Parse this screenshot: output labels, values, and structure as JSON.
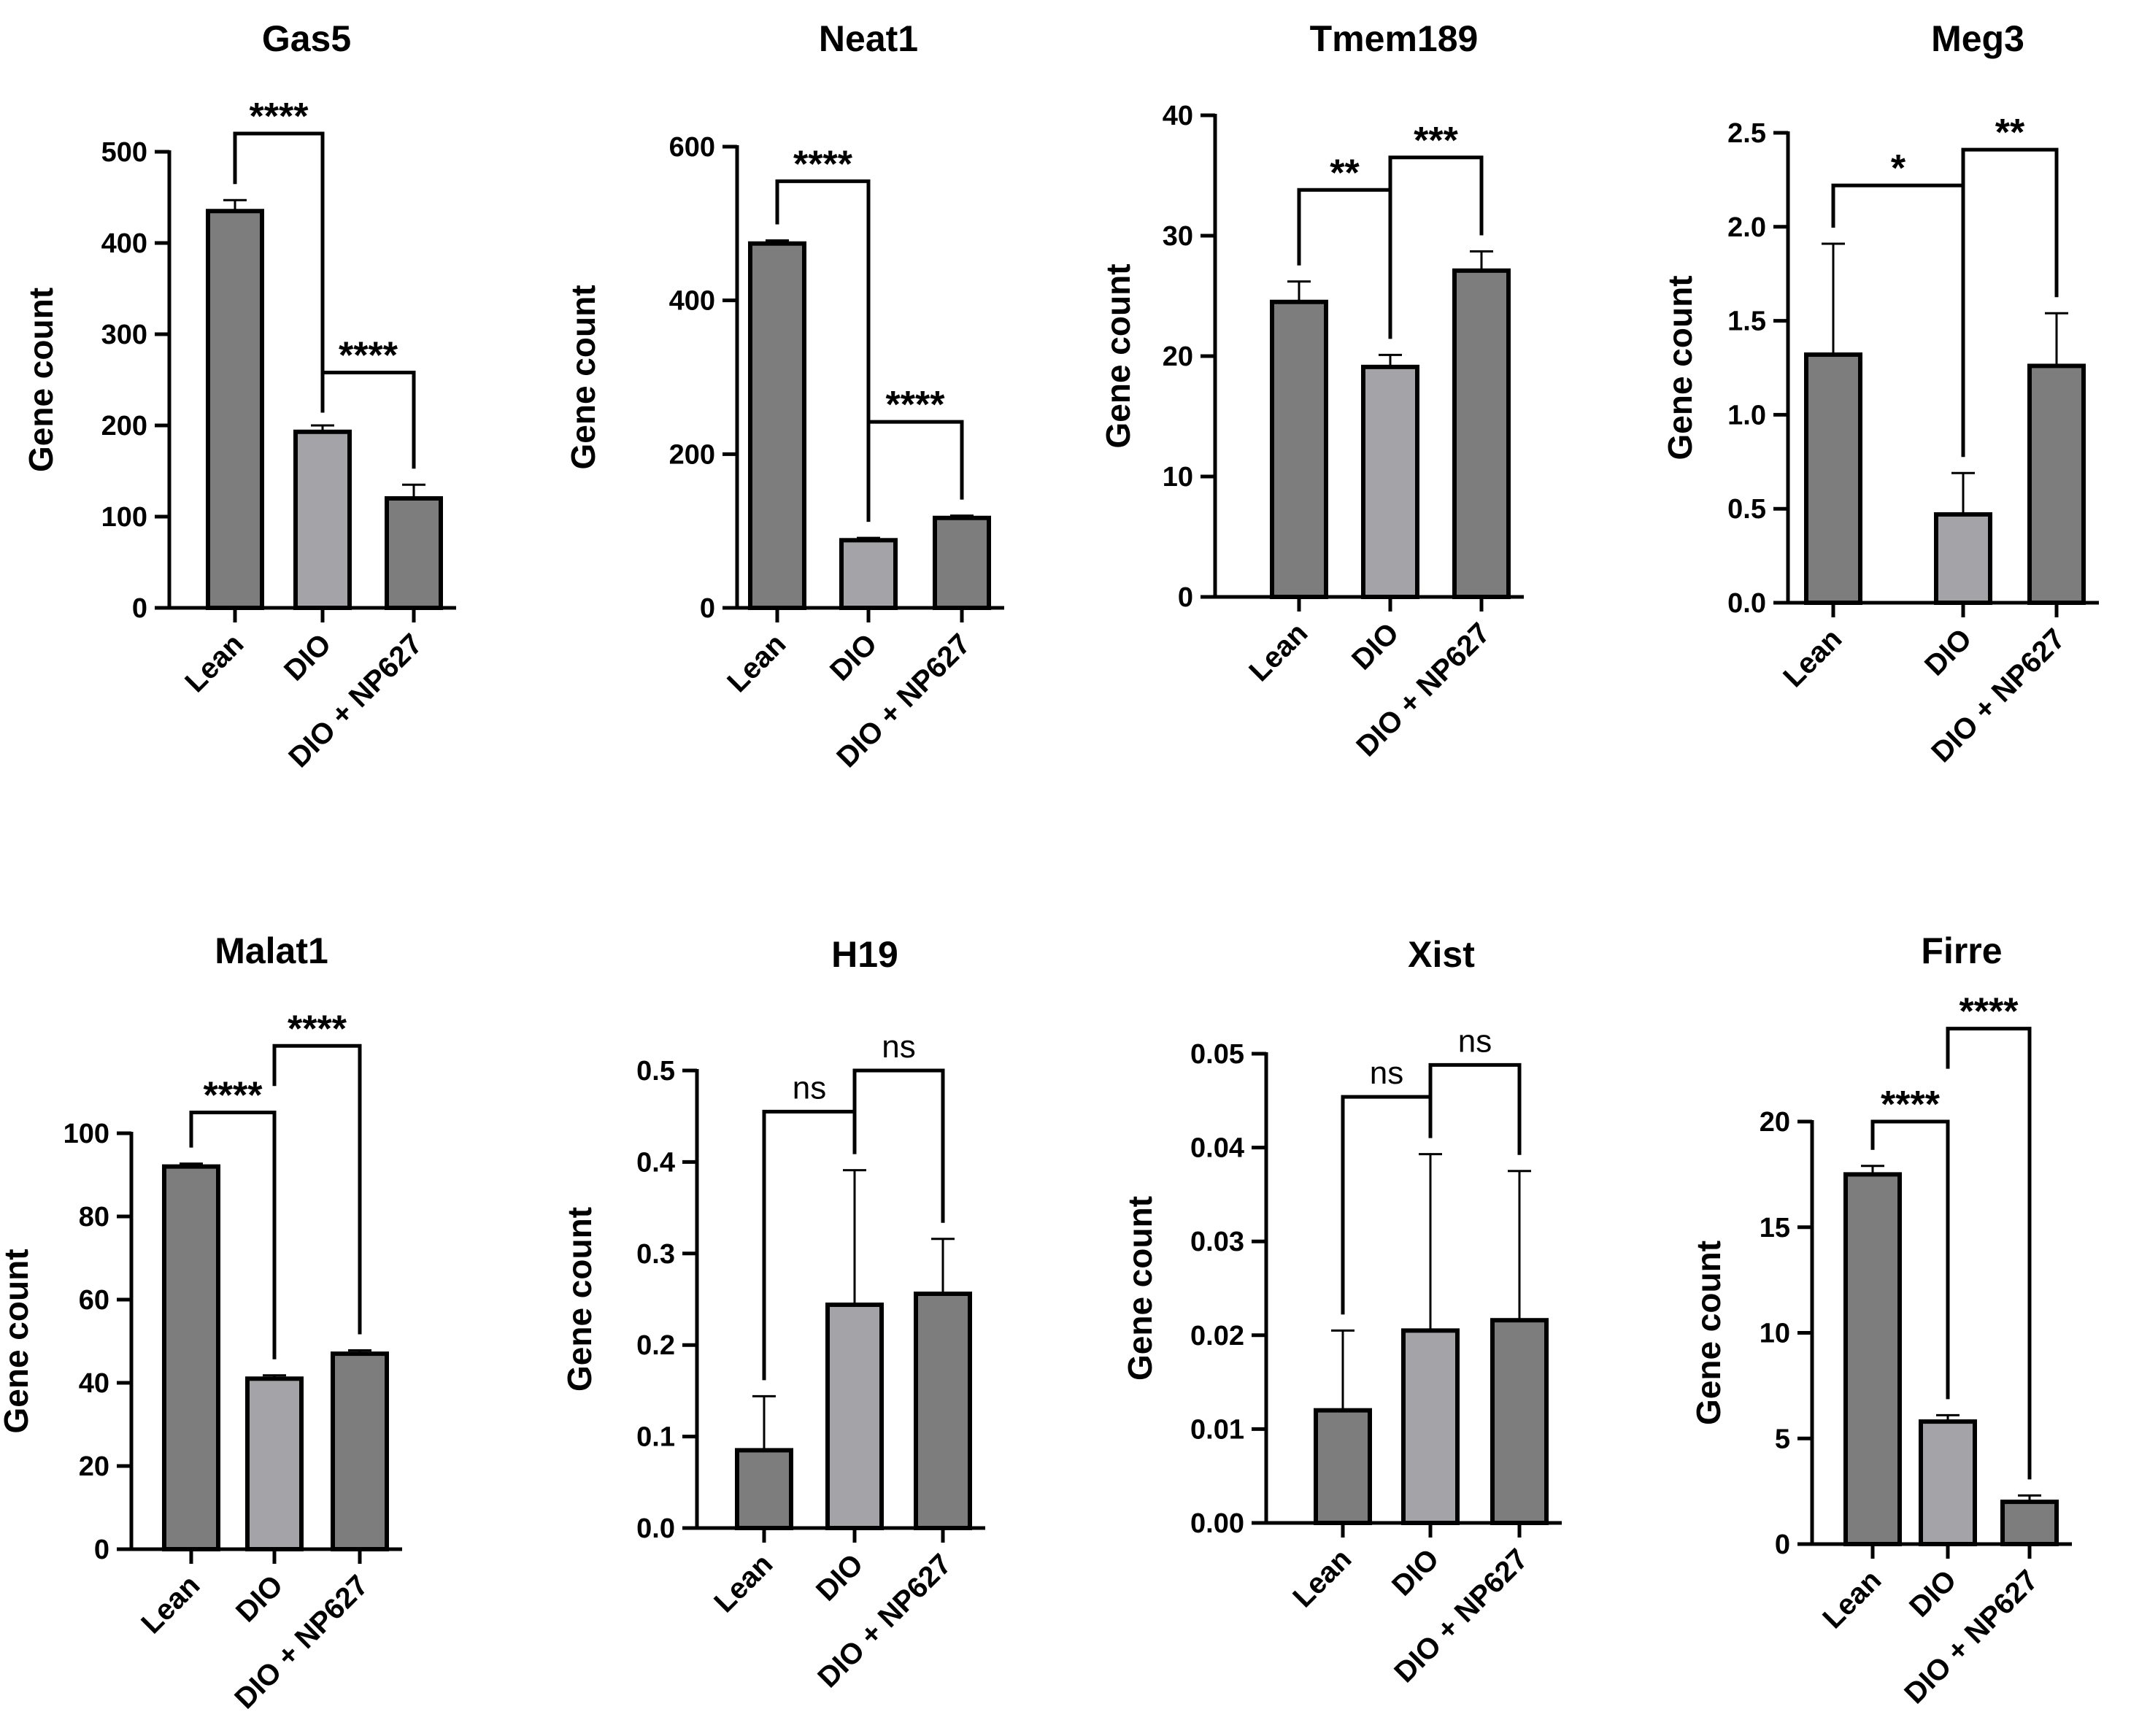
{
  "figure": {
    "ylabel": "Gene count"
  },
  "colors": {
    "lean": "#7d7d7d",
    "dio": "#a3a3a8",
    "np": "#7d7d7d",
    "stroke": "#000000"
  },
  "chart_data": [
    {
      "type": "bar",
      "title": "Gas5",
      "xlabel": "",
      "ylabel": "Gene count",
      "categories": [
        "Lean",
        "DIO",
        "DIO + NP627"
      ],
      "values": [
        435,
        193,
        120
      ],
      "errors": [
        12,
        7,
        15
      ],
      "ylim": [
        0,
        500
      ],
      "yticks": [
        "0",
        "100",
        "200",
        "300",
        "400",
        "500"
      ],
      "comparisons": [
        {
          "from": 0,
          "to": 1,
          "label": "****",
          "level": 520
        },
        {
          "from": 1,
          "to": 2,
          "label": "****",
          "level": 258
        }
      ]
    },
    {
      "type": "bar",
      "title": "Neat1",
      "xlabel": "",
      "ylabel": "Gene count",
      "categories": [
        "Lean",
        "DIO",
        "DIO + NP627"
      ],
      "values": [
        474,
        88,
        117
      ],
      "errors": [
        4,
        3,
        3
      ],
      "ylim": [
        0,
        600
      ],
      "yticks": [
        "0",
        "200",
        "400",
        "600"
      ],
      "comparisons": [
        {
          "from": 0,
          "to": 1,
          "label": "****",
          "level": 555
        },
        {
          "from": 1,
          "to": 2,
          "label": "****",
          "level": 242
        }
      ]
    },
    {
      "type": "bar",
      "title": "Tmem189",
      "xlabel": "",
      "ylabel": "Gene count",
      "categories": [
        "Lean",
        "DIO",
        "DIO + NP627"
      ],
      "values": [
        24.5,
        19.1,
        27.1
      ],
      "errors": [
        1.7,
        1.0,
        1.6
      ],
      "ylim": [
        0,
        40
      ],
      "yticks": [
        "0",
        "10",
        "20",
        "30",
        "40"
      ],
      "comparisons": [
        {
          "from": 0,
          "to": 1,
          "label": "**",
          "level": 33.8
        },
        {
          "from": 1,
          "to": 2,
          "label": "***",
          "level": 36.5
        }
      ]
    },
    {
      "type": "bar",
      "title": "Meg3",
      "xlabel": "",
      "ylabel": "Gene count",
      "categories": [
        "Lean",
        "DIO",
        "DIO + NP627"
      ],
      "values": [
        1.32,
        0.47,
        1.26
      ],
      "errors": [
        0.59,
        0.22,
        0.28
      ],
      "ylim": [
        0,
        2.5
      ],
      "yticks": [
        "0.0",
        "0.5",
        "1.0",
        "1.5",
        "2.0",
        "2.5"
      ],
      "comparisons": [
        {
          "from": 0,
          "to": 1,
          "label": "*",
          "level": 2.22
        },
        {
          "from": 1,
          "to": 2,
          "label": "**",
          "level": 2.41
        }
      ]
    },
    {
      "type": "bar",
      "title": "Malat1",
      "xlabel": "",
      "ylabel": "Gene count",
      "categories": [
        "Lean",
        "DIO",
        "DIO + NP627"
      ],
      "values": [
        92,
        41,
        47
      ],
      "errors": [
        0.7,
        0.8,
        0.8
      ],
      "ylim": [
        0,
        100
      ],
      "yticks": [
        "0",
        "20",
        "40",
        "60",
        "80",
        "100"
      ],
      "comparisons": [
        {
          "from": 0,
          "to": 1,
          "label": "****",
          "level": 105
        },
        {
          "from": 1,
          "to": 2,
          "label": "****",
          "level": 121
        }
      ]
    },
    {
      "type": "bar",
      "title": "H19",
      "xlabel": "",
      "ylabel": "Gene count",
      "categories": [
        "Lean",
        "DIO",
        "DIO + NP627"
      ],
      "values": [
        0.085,
        0.244,
        0.256
      ],
      "errors": [
        0.059,
        0.147,
        0.06
      ],
      "ylim": [
        0,
        0.5
      ],
      "yticks": [
        "0.0",
        "0.1",
        "0.2",
        "0.3",
        "0.4",
        "0.5"
      ],
      "comparisons": [
        {
          "from": 0,
          "to": 1,
          "label": "ns",
          "level": 0.455
        },
        {
          "from": 1,
          "to": 2,
          "label": "ns",
          "level": 0.5
        }
      ]
    },
    {
      "type": "bar",
      "title": "Xist",
      "xlabel": "",
      "ylabel": "Gene count",
      "categories": [
        "Lean",
        "DIO",
        "DIO + NP627"
      ],
      "values": [
        0.012,
        0.0205,
        0.0216
      ],
      "errors": [
        0.0085,
        0.0188,
        0.0159
      ],
      "ylim": [
        0,
        0.05
      ],
      "yticks": [
        "0.00",
        "0.01",
        "0.02",
        "0.03",
        "0.04",
        "0.05"
      ],
      "comparisons": [
        {
          "from": 0,
          "to": 1,
          "label": "ns",
          "level": 0.0454
        },
        {
          "from": 1,
          "to": 2,
          "label": "ns",
          "level": 0.0488
        }
      ]
    },
    {
      "type": "bar",
      "title": "Firre",
      "xlabel": "",
      "ylabel": "Gene count",
      "categories": [
        "Lean",
        "DIO",
        "DIO + NP627"
      ],
      "values": [
        17.5,
        5.8,
        2.0
      ],
      "errors": [
        0.4,
        0.3,
        0.3
      ],
      "ylim": [
        0,
        20
      ],
      "yticks": [
        "0",
        "5",
        "10",
        "15",
        "20"
      ],
      "comparisons": [
        {
          "from": 0,
          "to": 1,
          "label": "****",
          "level": 20
        },
        {
          "from": 1,
          "to": 2,
          "label": "****",
          "level": 24.4
        }
      ]
    }
  ]
}
